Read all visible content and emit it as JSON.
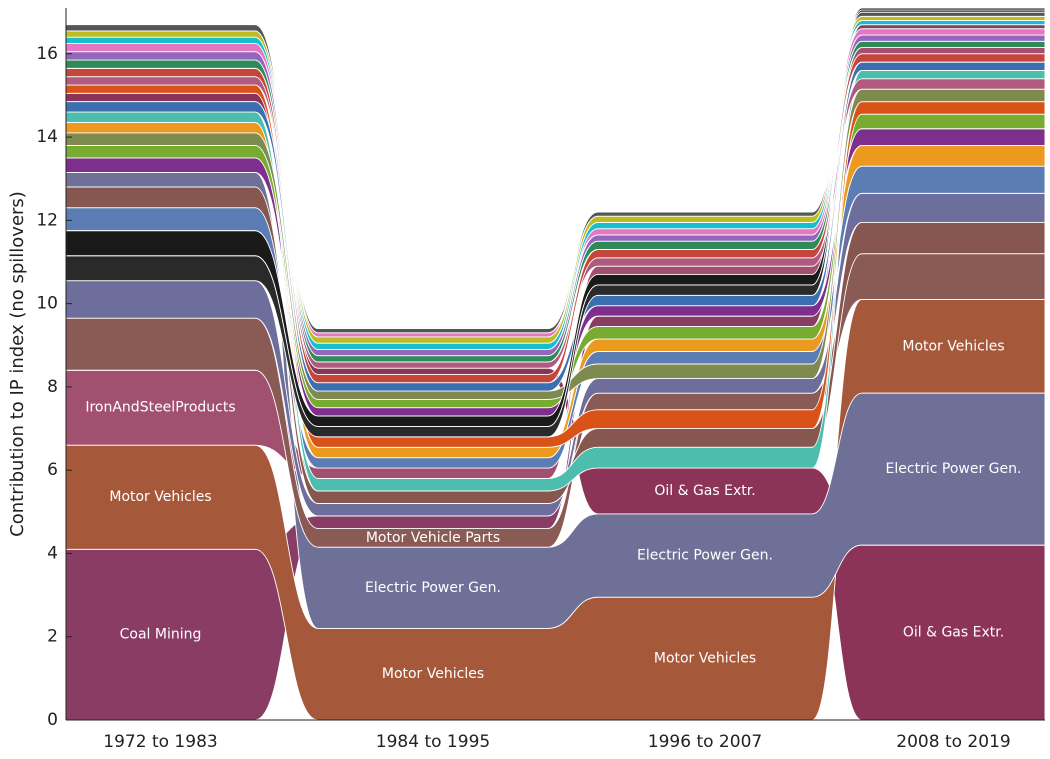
{
  "chart_data": {
    "type": "alluvial",
    "y_label": "Contribution to IP index (no spillovers)",
    "categories": [
      "1972 to 1983",
      "1984 to 1995",
      "1996 to 2007",
      "2008 to 2019"
    ],
    "ylim": [
      0,
      17.1
    ],
    "yticks": [
      0,
      2,
      4,
      6,
      8,
      10,
      12,
      14,
      16
    ],
    "stack_order": "descending",
    "series": [
      {
        "name": "Coal Mining",
        "color": "#8a3d64",
        "values": [
          4.1,
          0.3,
          0.25,
          0.1
        ],
        "labeled": [
          true,
          false,
          false,
          false
        ]
      },
      {
        "name": "Oil & Gas Extr.",
        "color": "#8c3358",
        "values": [
          0.2,
          0.15,
          1.1,
          4.2
        ],
        "labeled": [
          false,
          false,
          true,
          true
        ]
      },
      {
        "name": "Motor Vehicles",
        "color": "#a6583b",
        "values": [
          2.5,
          2.2,
          2.95,
          2.25
        ],
        "labeled": [
          true,
          true,
          true,
          true
        ]
      },
      {
        "name": "Electric Power Gen.",
        "color": "#6e7098",
        "values": [
          0.35,
          1.95,
          2.0,
          3.65
        ],
        "labeled": [
          false,
          true,
          true,
          true
        ]
      },
      {
        "name": "IronAndSteelProducts",
        "color": "#a2506f",
        "values": [
          1.8,
          0.25,
          0.2,
          0.15
        ],
        "labeled": [
          true,
          false,
          false,
          false
        ]
      },
      {
        "name": "Motor Vehicle Parts",
        "color": "#8a5a55",
        "values": [
          1.25,
          0.45,
          0.4,
          1.1
        ],
        "labeled": [
          false,
          true,
          false,
          false
        ]
      },
      {
        "color": "#6d6e9b",
        "values": [
          0.9,
          0.3,
          0.35,
          0.7
        ]
      },
      {
        "color": "#86564f",
        "values": [
          0.5,
          0.3,
          0.45,
          0.75
        ]
      },
      {
        "color": "#5b7db4",
        "values": [
          0.55,
          0.25,
          0.3,
          0.65
        ]
      },
      {
        "color": "#7e2f8e",
        "values": [
          0.35,
          0.2,
          0.25,
          0.4
        ]
      },
      {
        "color": "#eb9a1f",
        "values": [
          0.25,
          0.25,
          0.3,
          0.5
        ]
      },
      {
        "color": "#77ac30",
        "values": [
          0.3,
          0.2,
          0.3,
          0.35
        ]
      },
      {
        "color": "#d95319",
        "values": [
          0.2,
          0.25,
          0.45,
          0.3
        ]
      },
      {
        "color": "#4dbeae",
        "values": [
          0.25,
          0.3,
          0.5,
          0.2
        ]
      },
      {
        "color": "#7e8a4e",
        "values": [
          0.3,
          0.2,
          0.35,
          0.3
        ]
      },
      {
        "color": "#b05a80",
        "values": [
          0.2,
          0.15,
          0.2,
          0.25
        ]
      },
      {
        "color": "#3c6fb0",
        "values": [
          0.25,
          0.2,
          0.25,
          0.2
        ]
      },
      {
        "color": "#c4463a",
        "values": [
          0.2,
          0.2,
          0.2,
          0.2
        ]
      },
      {
        "color": "#2e8b57",
        "values": [
          0.2,
          0.15,
          0.2,
          0.15
        ]
      },
      {
        "color": "#9467bd",
        "values": [
          0.2,
          0.15,
          0.15,
          0.15
        ]
      },
      {
        "color": "#e377c2",
        "values": [
          0.2,
          0.1,
          0.15,
          0.15
        ]
      },
      {
        "color": "#17becf",
        "values": [
          0.15,
          0.15,
          0.15,
          0.1
        ]
      },
      {
        "color": "#bcbd22",
        "values": [
          0.15,
          0.15,
          0.15,
          0.1
        ]
      },
      {
        "color": "#555555",
        "values": [
          0.15,
          0.1,
          0.1,
          0.1
        ]
      },
      {
        "color": "#2a2a2a",
        "values": [
          0.6,
          0.25,
          0.25,
          0.05
        ]
      },
      {
        "color": "#1a1a1a",
        "values": [
          0.6,
          0.25,
          0.25,
          0.05
        ]
      }
    ]
  }
}
